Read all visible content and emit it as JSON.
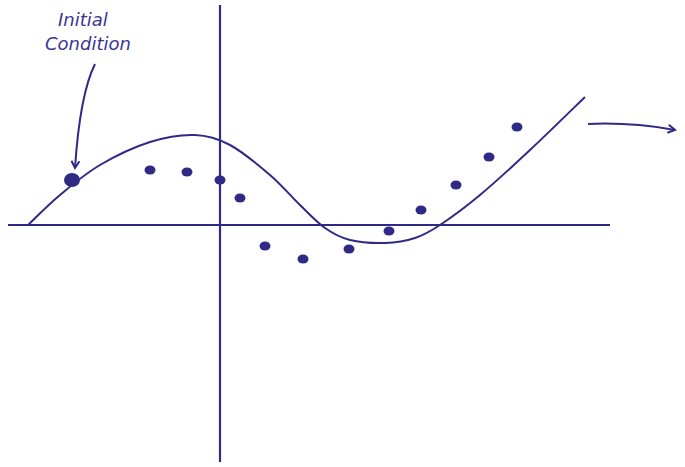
{
  "chart_data": {
    "type": "line",
    "annotations": [
      "Initial Condition"
    ],
    "xlim": [
      -10.6,
      19.5
    ],
    "ylim": [
      -11.85,
      11
    ],
    "tick_labels": false,
    "grid": false,
    "series": [
      {
        "type": "line",
        "color": "#2f2a86",
        "line_style": "solid",
        "x": [
          -9.6,
          -8,
          -6,
          -3.5,
          -1.25,
          0.5,
          2.5,
          4,
          5.25,
          6.5,
          8.25,
          9.75,
          11,
          13,
          15.5,
          18.25
        ],
        "values": [
          0,
          1.5,
          3,
          4.15,
          4.5,
          4,
          2.5,
          1,
          -0.15,
          -0.75,
          -0.9,
          -0.65,
          0,
          1.5,
          3.75,
          6.4
        ]
      },
      {
        "type": "scatter",
        "color": "#2f2a86",
        "marker": "circle",
        "x": [
          -7.4,
          -3.5,
          -1.65,
          0,
          1,
          2.25,
          4.15,
          6.45,
          8.45,
          10.05,
          11.8,
          13.45,
          14.85
        ],
        "values": [
          2.25,
          2.75,
          2.65,
          2.25,
          1.35,
          -1.05,
          -1.7,
          -1.2,
          -0.3,
          0.75,
          2,
          3.4,
          4.9
        ]
      }
    ]
  }
}
